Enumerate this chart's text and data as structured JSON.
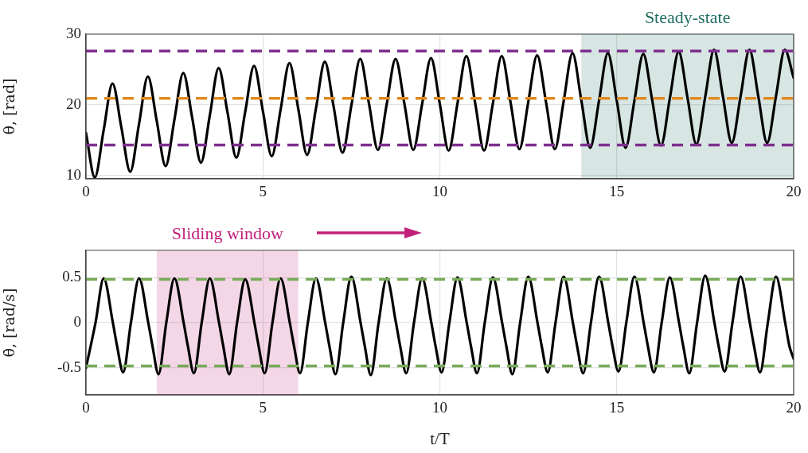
{
  "chart_data": [
    {
      "type": "line",
      "ylabel": "θ, [rad]",
      "x": [
        0,
        0.25,
        0.5,
        0.75,
        1,
        1.25,
        1.5,
        1.75,
        2,
        2.25,
        2.5,
        2.75,
        3,
        3.25,
        3.5,
        3.75,
        4,
        4.25,
        4.5,
        4.75,
        5,
        5.25,
        5.5,
        5.75,
        6,
        6.25,
        6.5,
        6.75,
        7,
        7.25,
        7.5,
        7.75,
        8,
        8.25,
        8.5,
        8.75,
        9,
        9.25,
        9.5,
        9.75,
        10,
        10.25,
        10.5,
        10.75,
        11,
        11.25,
        11.5,
        11.75,
        12,
        12.25,
        12.5,
        12.75,
        13,
        13.25,
        13.5,
        13.75,
        14,
        14.25,
        14.5,
        14.75,
        15,
        15.25,
        15.5,
        15.75,
        16,
        16.25,
        16.5,
        16.75,
        17,
        17.25,
        17.5,
        17.75,
        18,
        18.25,
        18.5,
        18.75,
        19,
        19.25,
        19.5,
        19.75,
        20
      ],
      "values": [
        16.0,
        9.7,
        16.4,
        23.0,
        16.8,
        10.5,
        17.3,
        24.0,
        17.7,
        11.3,
        17.9,
        24.5,
        18.2,
        11.8,
        18.5,
        25.2,
        18.9,
        12.5,
        19.0,
        25.5,
        19.1,
        12.7,
        19.3,
        25.9,
        19.4,
        12.9,
        19.5,
        26.1,
        19.7,
        13.2,
        19.9,
        26.5,
        20.1,
        13.6,
        20.1,
        26.5,
        20.1,
        13.6,
        20.1,
        26.6,
        20.1,
        13.5,
        20.2,
        26.9,
        20.2,
        13.5,
        20.2,
        26.9,
        20.3,
        13.7,
        20.4,
        27.0,
        20.4,
        13.7,
        20.5,
        27.3,
        20.6,
        13.9,
        20.6,
        27.3,
        20.6,
        13.9,
        20.6,
        27.2,
        20.7,
        14.2,
        20.9,
        27.5,
        21.0,
        14.4,
        21.1,
        27.8,
        21.2,
        14.6,
        21.2,
        27.8,
        21.2,
        14.6,
        21.2,
        27.8,
        23.8
      ],
      "color": "#000000",
      "marker": "none",
      "line_style": "solid",
      "xlim": [
        0,
        20
      ],
      "xticks": [
        0,
        5,
        10,
        15,
        20
      ],
      "ylim": [
        9.5,
        30
      ],
      "yticks": [
        10,
        20,
        30
      ],
      "grid": true,
      "legend": false,
      "bands": [
        {
          "axis": "x",
          "from": 14,
          "to": 20,
          "label": "Steady-state",
          "color": "#1f6e63"
        }
      ],
      "ref_lines": [
        {
          "axis": "y",
          "value": 27.6,
          "color": "#7e2f8e",
          "line_style": "dashed"
        },
        {
          "axis": "y",
          "value": 20.9,
          "color": "#e08a1e",
          "line_style": "dashed"
        },
        {
          "axis": "y",
          "value": 14.3,
          "color": "#7e2f8e",
          "line_style": "dashed"
        }
      ]
    },
    {
      "type": "line",
      "xlabel": "t/T",
      "ylabel": "θ̇, [rad/s]",
      "x": [
        0,
        0.27,
        0.5,
        0.76,
        0.88,
        1.05,
        1.27,
        1.5,
        1.76,
        1.88,
        2.05,
        2.27,
        2.5,
        2.76,
        2.88,
        3.05,
        3.27,
        3.5,
        3.76,
        3.88,
        4.05,
        4.27,
        4.5,
        4.76,
        4.88,
        5.05,
        5.27,
        5.5,
        5.76,
        5.88,
        6.05,
        6.27,
        6.5,
        6.76,
        6.88,
        7.05,
        7.27,
        7.5,
        7.76,
        7.88,
        8.05,
        8.27,
        8.5,
        8.76,
        8.88,
        9.05,
        9.27,
        9.5,
        9.76,
        9.88,
        10.05,
        10.27,
        10.5,
        10.76,
        10.88,
        11.05,
        11.27,
        11.5,
        11.76,
        11.88,
        12.05,
        12.27,
        12.5,
        12.76,
        12.88,
        13.05,
        13.27,
        13.5,
        13.76,
        13.88,
        14.05,
        14.27,
        14.5,
        14.76,
        14.88,
        15.05,
        15.27,
        15.5,
        15.76,
        15.88,
        16.05,
        16.27,
        16.5,
        16.76,
        16.88,
        17.05,
        17.27,
        17.5,
        17.76,
        17.88,
        18.05,
        18.27,
        18.5,
        18.76,
        18.88,
        19.05,
        19.27,
        19.5,
        19.76,
        19.88,
        20
      ],
      "values": [
        -0.5,
        0,
        0.49,
        0,
        -0.26,
        -0.55,
        0,
        0.49,
        0,
        -0.26,
        -0.57,
        0,
        0.49,
        0,
        -0.26,
        -0.56,
        0,
        0.49,
        0,
        -0.26,
        -0.57,
        0,
        0.48,
        0,
        -0.26,
        -0.56,
        0,
        0.49,
        0,
        -0.26,
        -0.56,
        0,
        0.49,
        0,
        -0.26,
        -0.57,
        0,
        0.51,
        0,
        -0.26,
        -0.58,
        0,
        0.49,
        0,
        -0.26,
        -0.56,
        0,
        0.49,
        0,
        -0.26,
        -0.55,
        0,
        0.5,
        0,
        -0.26,
        -0.56,
        0,
        0.5,
        0,
        -0.26,
        -0.57,
        0,
        0.51,
        0,
        -0.26,
        -0.55,
        0,
        0.51,
        0,
        -0.26,
        -0.56,
        0,
        0.51,
        0,
        -0.26,
        -0.54,
        0,
        0.51,
        0,
        -0.26,
        -0.55,
        0,
        0.5,
        0,
        -0.26,
        -0.56,
        0,
        0.52,
        0,
        -0.26,
        -0.54,
        0,
        0.51,
        0,
        -0.26,
        -0.55,
        0,
        0.51,
        0,
        -0.26,
        -0.4
      ],
      "color": "#000000",
      "marker": "none",
      "line_style": "solid",
      "xlim": [
        0,
        20
      ],
      "xticks": [
        0,
        5,
        10,
        15,
        20
      ],
      "ylim": [
        -0.8,
        0.8
      ],
      "yticks": [
        -0.5,
        0,
        0.5
      ],
      "grid": true,
      "legend": false,
      "bands": [
        {
          "axis": "x",
          "from": 2,
          "to": 6,
          "label": "Sliding window",
          "color": "#c2207a"
        }
      ],
      "ref_lines": [
        {
          "axis": "y",
          "value": 0.48,
          "color": "#77ab59",
          "line_style": "dashed"
        },
        {
          "axis": "y",
          "value": -0.48,
          "color": "#77ab59",
          "line_style": "dashed"
        }
      ]
    }
  ]
}
